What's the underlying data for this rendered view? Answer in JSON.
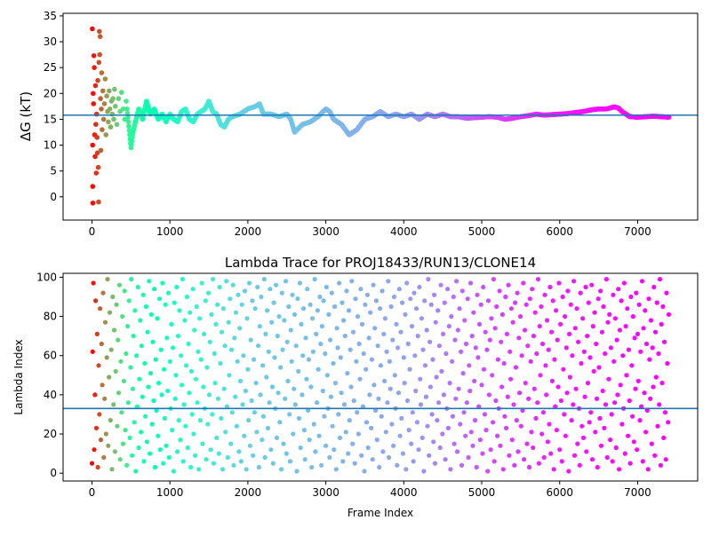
{
  "chart_data": [
    {
      "type": "scatter",
      "title": "",
      "xlabel": "",
      "ylabel": "ΔG (kT)",
      "xlim": [
        -370,
        7770
      ],
      "ylim": [
        -4.5,
        35.5
      ],
      "xticks": [
        0,
        1000,
        2000,
        3000,
        4000,
        5000,
        6000,
        7000
      ],
      "yticks": [
        0,
        5,
        10,
        15,
        20,
        25,
        30,
        35
      ],
      "mean_line": 15.8,
      "mean_line_color": "#1f77b4",
      "colormap": "rainbow_r",
      "early_points": [
        [
          5,
          32.5
        ],
        [
          10,
          2
        ],
        [
          12,
          -1.2
        ],
        [
          8,
          10
        ],
        [
          15,
          20
        ],
        [
          20,
          18
        ],
        [
          25,
          27.3
        ],
        [
          30,
          25
        ],
        [
          35,
          12
        ],
        [
          40,
          7.8
        ],
        [
          45,
          21.5
        ],
        [
          50,
          14
        ],
        [
          55,
          4.6
        ],
        [
          60,
          16
        ],
        [
          65,
          11.5
        ],
        [
          70,
          8.5
        ],
        [
          75,
          22.5
        ],
        [
          80,
          5.7
        ],
        [
          85,
          -1
        ],
        [
          90,
          26
        ],
        [
          95,
          32
        ],
        [
          100,
          27.5
        ],
        [
          105,
          31
        ],
        [
          110,
          19
        ],
        [
          115,
          9
        ],
        [
          120,
          17
        ],
        [
          125,
          24
        ],
        [
          130,
          13
        ],
        [
          140,
          20.5
        ],
        [
          150,
          15
        ],
        [
          160,
          18
        ],
        [
          170,
          22.8
        ],
        [
          180,
          12
        ],
        [
          190,
          19.5
        ],
        [
          200,
          16.5
        ],
        [
          210,
          14.5
        ],
        [
          220,
          20.5
        ],
        [
          230,
          17
        ],
        [
          240,
          13.5
        ],
        [
          250,
          18.5
        ],
        [
          260,
          16
        ],
        [
          270,
          19
        ],
        [
          280,
          15
        ],
        [
          290,
          20.8
        ],
        [
          300,
          17.5
        ],
        [
          320,
          14
        ],
        [
          340,
          19
        ],
        [
          360,
          16.5
        ],
        [
          380,
          20.2
        ],
        [
          400,
          17
        ],
        [
          420,
          15
        ],
        [
          440,
          18.5
        ]
      ],
      "x": [
        450,
        500,
        520,
        550,
        600,
        650,
        700,
        750,
        800,
        850,
        900,
        950,
        1000,
        1050,
        1100,
        1150,
        1200,
        1250,
        1300,
        1350,
        1400,
        1450,
        1500,
        1550,
        1600,
        1650,
        1700,
        1750,
        1800,
        1900,
        2000,
        2100,
        2150,
        2200,
        2300,
        2400,
        2500,
        2550,
        2600,
        2700,
        2800,
        2900,
        3000,
        3050,
        3100,
        3200,
        3300,
        3350,
        3400,
        3500,
        3600,
        3700,
        3800,
        3900,
        4000,
        4100,
        4200,
        4300,
        4400,
        4500,
        4600,
        4700,
        4800,
        4900,
        5000,
        5100,
        5200,
        5300,
        5400,
        5500,
        5600,
        5700,
        5800,
        5900,
        6000,
        6100,
        6200,
        6300,
        6400,
        6500,
        6600,
        6700,
        6750,
        6800,
        6900,
        7000,
        7100,
        7200,
        7300,
        7400
      ],
      "y": [
        17,
        9.5,
        12,
        14,
        17,
        15,
        18.5,
        16,
        17,
        15,
        16,
        14.5,
        16,
        15,
        14.5,
        16.5,
        17,
        15,
        14.5,
        16,
        16.5,
        17,
        18.5,
        16.5,
        16,
        14,
        13.5,
        15,
        15.5,
        16,
        17,
        17.5,
        18,
        16,
        16,
        15.5,
        16,
        15,
        12.5,
        14,
        14.5,
        15.5,
        17,
        16.5,
        15,
        14,
        12,
        12.5,
        13,
        15,
        15.5,
        16.5,
        15.5,
        16,
        15.5,
        16,
        15,
        16,
        15.5,
        16,
        15.5,
        15.5,
        15.2,
        15.3,
        15.4,
        15.5,
        15.4,
        15.0,
        15.2,
        15.5,
        15.7,
        16.0,
        15.8,
        15.9,
        16.0,
        16.1,
        16.3,
        16.5,
        16.8,
        17.0,
        17.0,
        17.4,
        17.2,
        16.5,
        15.5,
        15.4,
        15.5,
        15.6,
        15.5,
        15.4
      ]
    },
    {
      "type": "scatter",
      "title": "Lambda Trace for PROJ18433/RUN13/CLONE14",
      "xlabel": "Frame Index",
      "ylabel": "Lambda Index",
      "xlim": [
        -370,
        7770
      ],
      "ylim": [
        -4,
        102
      ],
      "xticks": [
        0,
        1000,
        2000,
        3000,
        4000,
        5000,
        6000,
        7000
      ],
      "yticks": [
        0,
        20,
        40,
        60,
        80,
        100
      ],
      "mean_line": 33,
      "mean_line_color": "#1f77b4",
      "colormap": "rainbow_r",
      "x_range": [
        0,
        7400
      ],
      "lambda": [
        5,
        62,
        97,
        12,
        40,
        88,
        23,
        71,
        3,
        55,
        30,
        84,
        17,
        66,
        45,
        92,
        8,
        38,
        77,
        20,
        59,
        99,
        14,
        49,
        82,
        27,
        63,
        2,
        90,
        35,
        73,
        11,
        52,
        86,
        24,
        68,
        41,
        96,
        7,
        57,
        31,
        80,
        15,
        47,
        93,
        22,
        61,
        4,
        75,
        36,
        88,
        18,
        54,
        99,
        9,
        43,
        70,
        26,
        83,
        1,
        60,
        34,
        95,
        13,
        48,
        78,
        21,
        65,
        39,
        91,
        6,
        56,
        29,
        85,
        16,
        72,
        44,
        98,
        10,
        51,
        81,
        25,
        67,
        37,
        94,
        3,
        58,
        32,
        79,
        19,
        46,
        89,
        12,
        63,
        40,
        97,
        5,
        53,
        28,
        86,
        14,
        69,
        42,
        92,
        8,
        57,
        33,
        76,
        22,
        64,
        1,
        87,
        38,
        50,
        95,
        11,
        70,
        27,
        83,
        17,
        60,
        45,
        99,
        6,
        35,
        78,
        24,
        55,
        90,
        13,
        66,
        41,
        82,
        3,
        52,
        30,
        94,
        20,
        73,
        9,
        48,
        85,
        36,
        62,
        2,
        79,
        27,
        58,
        97,
        15,
        44,
        71,
        33,
        88,
        7,
        54,
        25,
        92,
        40,
        67,
        12,
        81,
        30,
        99,
        5,
        61,
        46,
        76,
        18,
        86,
        38,
        10,
        95,
        56,
        28,
        72,
        2,
        84,
        43,
        65,
        21,
        98,
        34,
        8,
        77,
        50,
        89,
        15,
        63,
        31,
        96,
        4,
        69,
        39,
        82,
        24,
        57,
        91,
        11,
        74,
        47,
        6,
        86,
        35,
        60,
        19,
        93,
        42,
        2,
        79,
        53,
        27,
        97,
        14,
        68,
        37,
        88,
        9,
        58,
        31,
        84,
        46,
        21,
        95,
        65,
        3,
        75,
        40,
        90,
        17,
        55,
        29,
        99,
        8,
        71,
        49,
        83,
        23,
        62,
        36,
        94,
        12,
        77,
        44,
        5,
        87,
        59,
        33,
        96,
        18,
        70,
        41,
        80,
        26,
        54,
        2,
        92,
        63,
        15,
        78,
        38,
        98,
        10,
        67,
        47,
        85,
        30,
        6,
        73,
        57,
        91,
        20,
        43,
        81,
        35,
        65,
        1,
        89,
        52,
        28,
        97,
        13,
        76,
        40,
        60,
        84,
        22,
        7,
        69,
        48,
        94,
        32,
        58,
        17,
        86,
        44,
        3,
        79,
        62,
        25,
        99,
        11,
        71,
        36,
        83,
        53,
        19,
        90,
        66,
        4,
        75,
        42,
        88,
        29,
        61,
        14,
        95,
        50,
        33,
        81,
        8,
        68,
        39,
        92,
        24,
        56,
        12,
        85,
        46,
        2,
        74,
        64,
        30,
        97,
        18,
        59,
        41,
        87,
        6,
        78,
        35,
        70,
        21,
        93,
        51,
        10,
        83,
        27,
        63,
        44,
        98,
        15,
        72,
        37,
        5,
        89,
        57,
        31,
        80,
        20,
        66,
        48,
        94,
        9,
        76,
        34,
        61,
        1,
        86,
        53,
        26,
        91,
        13,
        69,
        40,
        82,
        23,
        58,
        7,
        96,
        45,
        74,
        32,
        88,
        17,
        65,
        38,
        3,
        84,
        55,
        29,
        93,
        11,
        71,
        47,
        79,
        21,
        62,
        36,
        98,
        8,
        57,
        43,
        85,
        25,
        68,
        14,
        90,
        50,
        33,
        76,
        4,
        64,
        41,
        94,
        19,
        72,
        28,
        87,
        10,
        59,
        46,
        81,
        2,
        97,
        37,
        66,
        22,
        53,
        89,
        15,
        75,
        31,
        6,
        92,
        60,
        42,
        84,
        26,
        70,
        12,
        95,
        48,
        35,
        79,
        18,
        63,
        1,
        88,
        55,
        39,
        73,
        24,
        99,
        9,
        67,
        44,
        86,
        30,
        58,
        16,
        91,
        5,
        77,
        49,
        27,
        83,
        36,
        65,
        13,
        96,
        52,
        20,
        71,
        40,
        87,
        7,
        61,
        33,
        94,
        23,
        75,
        46,
        2,
        80,
        57,
        29,
        90,
        15,
        68,
        38,
        98,
        11,
        73,
        43,
        84,
        25,
        62,
        4,
        93,
        51,
        31,
        78,
        19,
        66,
        36,
        89,
        8,
        55,
        42,
        97,
        21,
        70,
        14,
        82,
        47,
        27,
        64,
        3,
        91,
        59,
        34,
        76,
        17,
        86,
        45,
        10,
        95,
        53,
        30,
        72,
        22,
        63,
        1,
        88,
        40,
        68,
        12,
        79,
        50,
        26,
        99,
        6,
        74,
        37,
        85,
        19,
        58,
        33,
        93,
        14,
        67,
        44,
        81,
        2,
        56,
        29,
        90,
        23,
        71,
        39,
        96,
        9,
        62,
        48,
        84,
        17,
        77,
        35,
        4,
        87,
        54,
        27,
        92,
        11,
        69,
        41,
        80,
        24,
        60,
        32,
        97,
        7,
        73,
        46,
        86,
        15,
        65,
        38,
        3,
        89,
        57,
        21,
        94,
        13,
        70,
        43,
        82,
        28,
        61,
        36,
        99,
        5,
        75,
        50,
        85,
        20,
        66,
        31,
        8,
        91,
        55,
        40,
        78,
        16,
        63,
        25,
        95,
        10,
        72,
        47,
        88,
        2,
        58,
        34,
        83,
        22,
        68,
        44,
        97,
        12,
        76,
        37,
        6,
        90,
        53,
        30,
        80,
        19,
        64,
        41,
        93,
        1,
        71,
        49,
        86,
        27,
        60,
        35,
        98,
        9,
        74,
        43,
        84,
        15,
        67,
        33,
        4,
        92,
        56,
        24,
        79,
        18,
        62,
        39,
        95,
        11,
        70,
        46,
        87,
        26,
        59,
        31,
        96,
        7,
        75,
        52,
        82,
        21,
        66,
        38,
        3,
        89,
        54,
        28,
        93,
        14,
        72,
        42,
        85,
        23,
        61,
        35,
        99,
        8,
        77,
        48,
        81,
        17,
        64,
        30,
        6,
        91,
        57,
        36,
        79,
        13,
        68,
        40,
        94,
        2,
        73,
        45,
        88,
        25,
        60,
        33,
        97,
        10,
        75,
        50,
        84,
        19,
        63,
        37,
        5,
        90,
        55,
        29,
        80,
        16,
        69,
        43,
        92,
        12,
        71,
        47,
        86,
        27,
        62,
        34,
        98,
        6,
        74,
        41,
        83,
        21,
        66,
        32,
        2,
        89,
        58,
        38,
        78,
        15,
        64,
        44,
        95,
        9,
        72,
        49,
        87,
        24,
        61,
        35,
        99,
        4,
        76,
        46,
        85,
        18,
        67,
        31,
        7,
        92,
        56,
        26,
        81
      ]
    }
  ]
}
